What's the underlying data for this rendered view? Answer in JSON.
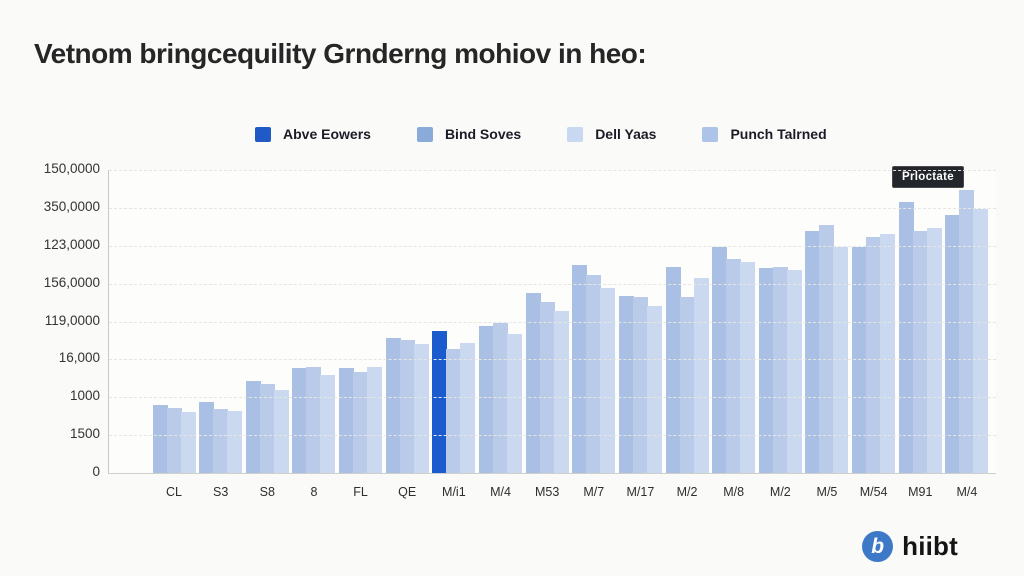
{
  "title": "Vetnom bringcequility Grnderng mohiov in heo:",
  "legend": [
    {
      "label": "Abve Eowers",
      "color": "#1f5ac6"
    },
    {
      "label": "Bind Soves",
      "color": "#8aaad9"
    },
    {
      "label": "Dell Yaas",
      "color": "#c8d8f0"
    },
    {
      "label": "Punch Talrned",
      "color": "#aec3e8"
    }
  ],
  "tooltip": {
    "text": "Prloctate"
  },
  "logo": {
    "mark": "b",
    "text": "hiibt"
  },
  "colors": {
    "bar_series": [
      "#a9bfe3",
      "#b9cbe9",
      "#cbd9f0"
    ],
    "highlight": "#1a5ccd",
    "gridline": "#e6e6e1",
    "axis": "#c9c9c7",
    "tooltip_bg": "#23262b",
    "logo_circle": "#3e79c7"
  },
  "chart_data": {
    "type": "bar",
    "title": "Vetnom bringcequility Grnderng mohiov in heo:",
    "xlabel": "",
    "ylabel": "",
    "grid": true,
    "legend_position": "top",
    "value_unit": "percent_of_axis_max",
    "ylim": [
      0,
      100
    ],
    "y_tick_labels": [
      "150,0000",
      "350,0000",
      "123,0000",
      "156,0000",
      "119,0000",
      "16,000",
      "1000",
      "1500",
      "0"
    ],
    "categories": [
      "CL",
      "S3",
      "S8",
      "8",
      "FL",
      "QE",
      "M/i1",
      "M/4",
      "M53",
      "M/7",
      "M/17",
      "M/2",
      "M/8",
      "M/2",
      "M/5",
      "M/54",
      "M91",
      "M/4"
    ],
    "series": [
      {
        "name": "Bind Soves",
        "values": [
          22.5,
          23.5,
          30.5,
          34.5,
          34.5,
          44.5,
          47,
          48.5,
          59.5,
          68.5,
          58.5,
          68,
          74.5,
          67.5,
          80,
          74.5,
          89.5,
          85
        ]
      },
      {
        "name": "Punch Talrned",
        "values": [
          21.5,
          21,
          29.5,
          35,
          33.5,
          44,
          41,
          49.5,
          56.5,
          65.5,
          58,
          58,
          70.5,
          68,
          82,
          78,
          80,
          93.5
        ]
      },
      {
        "name": "Dell Yaas",
        "values": [
          20,
          20.5,
          27.5,
          32.5,
          35,
          42.5,
          43,
          46,
          53.5,
          61,
          55,
          64.5,
          69.5,
          67,
          74.5,
          79,
          81,
          87
        ]
      }
    ],
    "highlight": {
      "category_index": 6,
      "series_index": 0,
      "legend_name": "Abve Eowers",
      "color": "#1a5ccd"
    },
    "tooltip": {
      "text": "Prloctate",
      "near_category": "M91"
    }
  }
}
